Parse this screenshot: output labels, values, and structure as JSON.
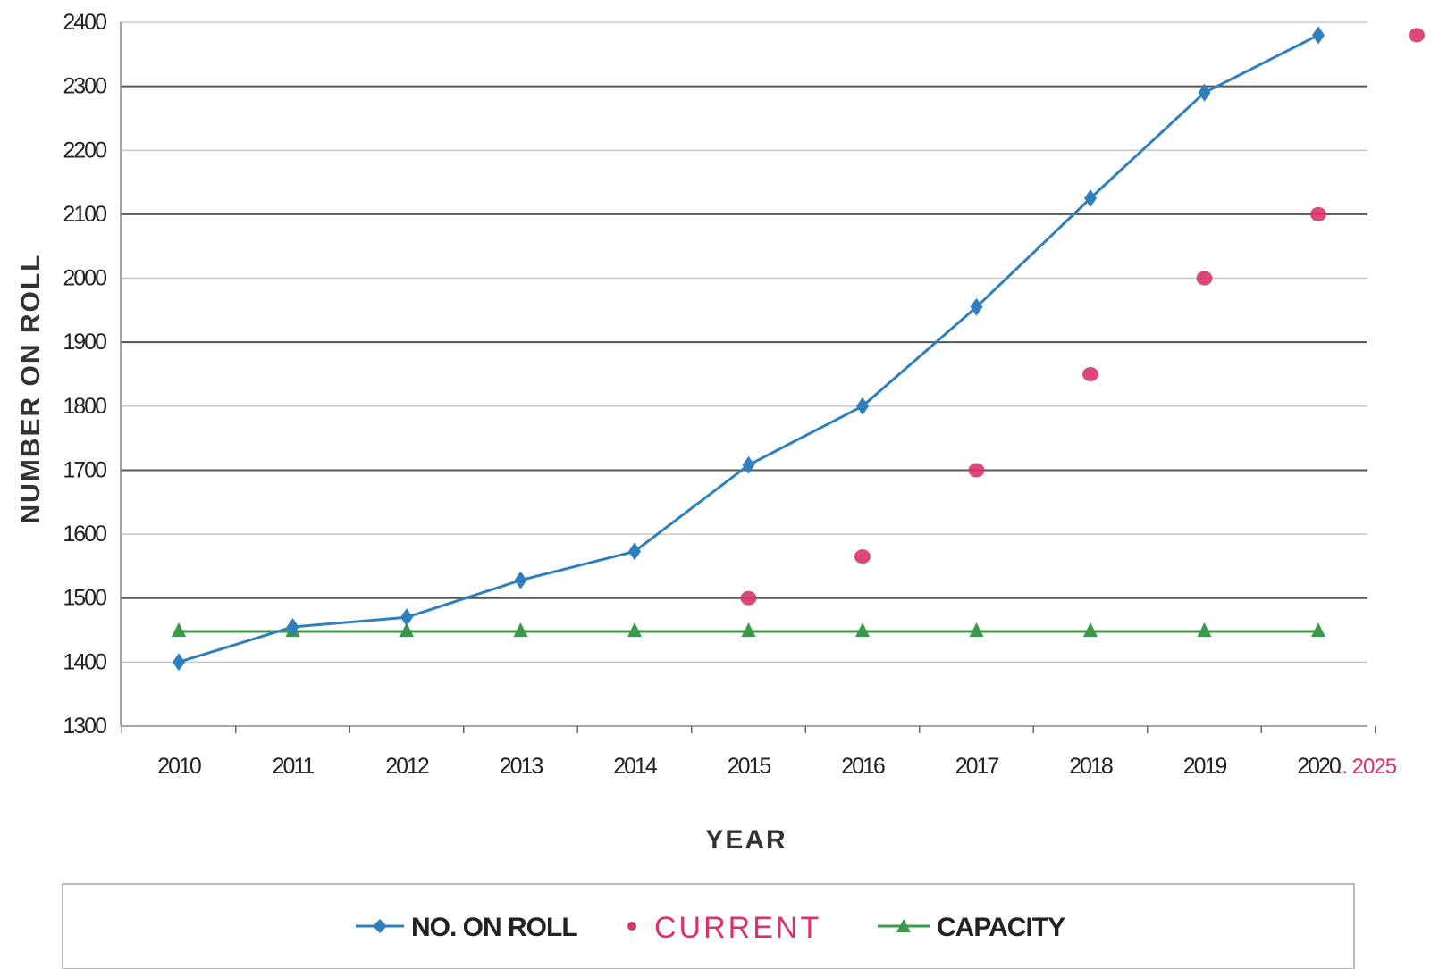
{
  "chart_data": {
    "type": "line",
    "xlabel": "YEAR",
    "ylabel": "NUMBER ON ROLL",
    "ylim": [
      1300,
      2400
    ],
    "yticks": [
      "1300",
      "1400",
      "1500",
      "1600",
      "1700",
      "1800",
      "1900",
      "2000",
      "2100",
      "2200",
      "2300",
      "2400"
    ],
    "categories": [
      "2010",
      "2011",
      "2012",
      "2013",
      "2014",
      "2015",
      "2016",
      "2017",
      "2018",
      "2019",
      "2020"
    ],
    "extra_category": "... 2025",
    "grid": true,
    "legend_position": "bottom",
    "series": [
      {
        "name": "NO. ON ROLL",
        "type": "line",
        "color": "#2f7fbf",
        "marker": "diamond",
        "values": [
          1400,
          1455,
          1470,
          1528,
          1573,
          1708,
          1800,
          1955,
          2125,
          2290,
          2380
        ]
      },
      {
        "name": "CURRENT",
        "type": "scatter",
        "color": "#d9336a",
        "marker": "dot",
        "points": [
          {
            "x": "2015",
            "y": 1500
          },
          {
            "x": "2016",
            "y": 1565
          },
          {
            "x": "2017",
            "y": 1700
          },
          {
            "x": "2018",
            "y": 1850
          },
          {
            "x": "2019",
            "y": 2000
          },
          {
            "x": "2020",
            "y": 2100
          },
          {
            "x": "2025",
            "y": 2380
          }
        ]
      },
      {
        "name": "CAPACITY",
        "type": "line",
        "color": "#3a9a4a",
        "marker": "triangle",
        "values": [
          1448,
          1448,
          1448,
          1448,
          1448,
          1448,
          1448,
          1448,
          1448,
          1448,
          1448
        ]
      }
    ]
  }
}
